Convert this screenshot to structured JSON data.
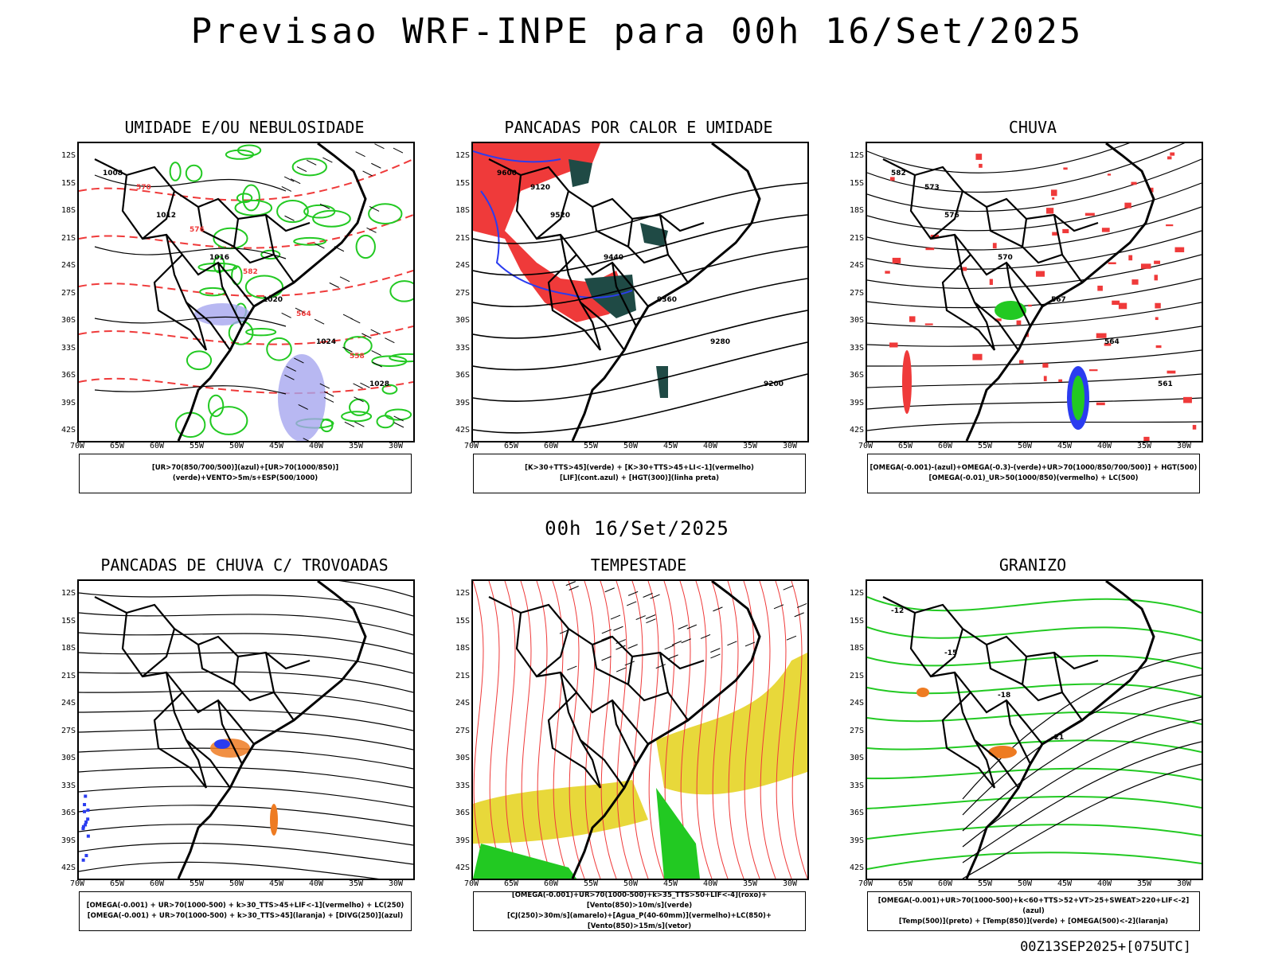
{
  "main_title": "Previsao WRF-INPE  para 00h 16/Set/2025",
  "mid_title": "00h 16/Set/2025",
  "footer": "00Z13SEP2025+[075UTC]",
  "lat_labels": [
    "12S",
    "15S",
    "18S",
    "21S",
    "24S",
    "27S",
    "30S",
    "33S",
    "36S",
    "39S",
    "42S"
  ],
  "lon_labels": [
    "70W",
    "65W",
    "60W",
    "55W",
    "50W",
    "45W",
    "40W",
    "35W",
    "30W"
  ],
  "colors": {
    "red": "#ef3a3a",
    "green": "#22c922",
    "blue": "#2a3cf0",
    "lavender": "#a6a6ef",
    "darkgreen": "#1f4a45",
    "yellow": "#e8d83a",
    "orange": "#ee7b22"
  },
  "panels": [
    {
      "title": "UMIDADE E/OU NEBULOSIDADE",
      "legend": [
        "[UR>70(850/700/500)](azul)+[UR>70(1000/850)](verde)+VENTO>5m/s+ESP(500/1000)"
      ],
      "contours": [
        "1008",
        "1012",
        "1016",
        "1020",
        "1024",
        "1028",
        "570",
        "576",
        "582",
        "564",
        "558"
      ]
    },
    {
      "title": "PANCADAS POR CALOR E UMIDADE",
      "legend": [
        "[K>30+TTS>45](verde) + [K>30+TTS>45+LI<-1](vermelho)",
        "[LIF](cont.azul) + [HGT(300)](linha preta)"
      ],
      "contours": [
        "9600",
        "9520",
        "9440",
        "9360",
        "9280",
        "9200",
        "9120"
      ]
    },
    {
      "title": "CHUVA",
      "legend": [
        "[OMEGA(-0.001)-(azul)+OMEGA(-0.3)-(verde)+UR>70(1000/850/700/500)] + HGT(500)",
        "[OMEGA(-0.01)_UR>50(1000/850)(vermelho) + LC(500)"
      ],
      "contours": [
        "582",
        "576",
        "570",
        "567",
        "564",
        "561",
        "573"
      ]
    },
    {
      "title": "PANCADAS DE CHUVA C/ TROVOADAS",
      "legend": [
        "[OMEGA(-0.001) + UR>70(1000-500) + k>30_TTS>45+LIF<-1](vermelho) + LC(250)",
        "[OMEGA(-0.001) + UR>70(1000-500) + k>30_TTS>45](laranja) + [DIVG(250)](azul)"
      ],
      "contours": []
    },
    {
      "title": "TEMPESTADE",
      "legend": [
        "[OMEGA(-0.001)+UR>70(1000-500)+k>35_TTS>50+LIF<-4](roxo)+[Vento(850)>10m/s](verde)",
        "[CJ(250)>30m/s](amarelo)+[Agua_P(40-60mm)](vermelho)+LC(850)+[Vento(850)>15m/s](vetor)"
      ],
      "contours": []
    },
    {
      "title": "GRANIZO",
      "legend": [
        "[OMEGA(-0.001)+UR>70(1000-500)+k<60+TTS>52+VT>25+SWEAT>220+LIF<-2](azul)",
        "[Temp(500)](preto) + [Temp(850)](verde) + [OMEGA(500)<-2](laranja)"
      ],
      "contours": [
        "-12",
        "-15",
        "-18",
        "-21"
      ]
    }
  ]
}
